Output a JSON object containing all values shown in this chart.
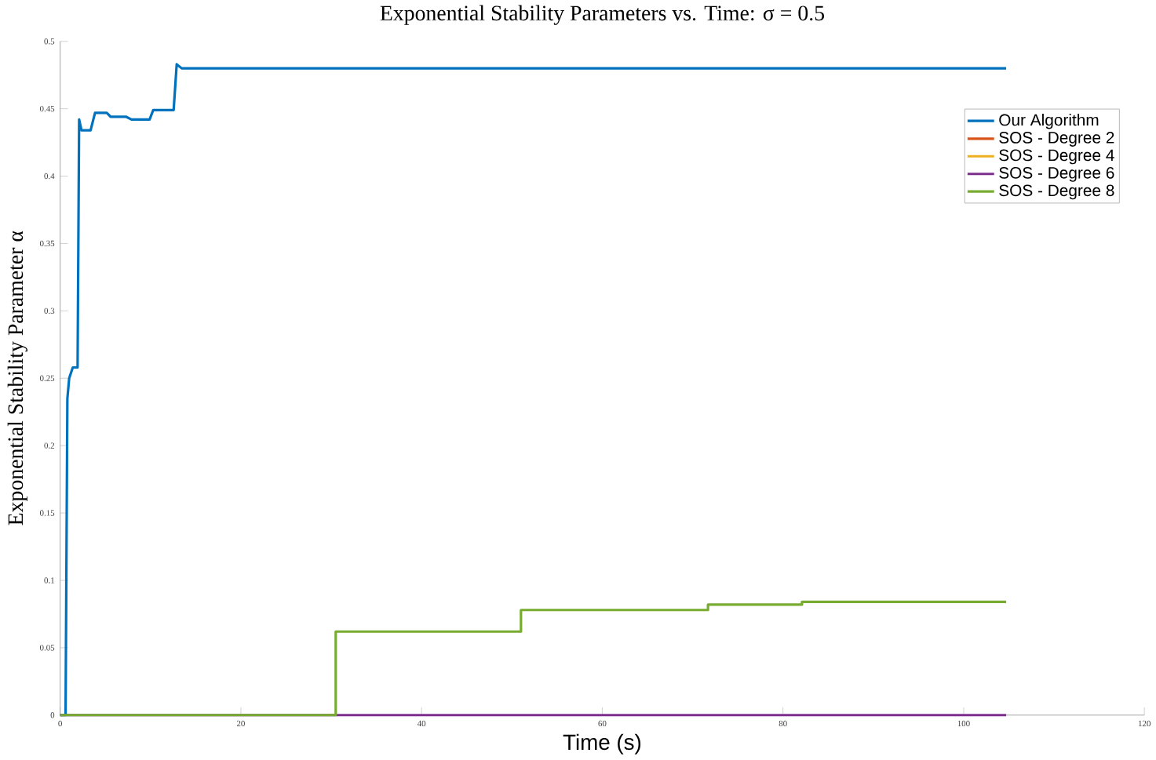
{
  "chart_data": {
    "type": "line",
    "title": "Exponential Stability Parameters vs. Time: σ = 0.5",
    "xlabel": "Time (s)",
    "ylabel": "Exponential Stability Parameter α",
    "xlim": [
      0,
      120
    ],
    "ylim": [
      0,
      0.5
    ],
    "xticks": [
      0,
      20,
      40,
      60,
      80,
      100,
      120
    ],
    "yticks": [
      0,
      0.05,
      0.1,
      0.15,
      0.2,
      0.25,
      0.3,
      0.35,
      0.4,
      0.45,
      0.5
    ],
    "grid": false,
    "legend": "top right",
    "series": [
      {
        "name": "Our Algorithm",
        "color": "#0072bd",
        "x": [
          0,
          0.6,
          0.8,
          1.0,
          1.4,
          1.93,
          2.1,
          2.36,
          3.37,
          3.86,
          5.16,
          5.59,
          7.32,
          7.9,
          9.9,
          10.3,
          12.56,
          12.9,
          13.45,
          20,
          104.7
        ],
        "values": [
          0,
          0,
          0.235,
          0.25,
          0.258,
          0.258,
          0.442,
          0.434,
          0.434,
          0.447,
          0.447,
          0.444,
          0.444,
          0.442,
          0.442,
          0.449,
          0.449,
          0.483,
          0.48,
          0.48,
          0.48
        ]
      },
      {
        "name": "SOS - Degree 2",
        "color": "#d95319"
      },
      {
        "name": "SOS - Degree 4",
        "color": "#edb120"
      },
      {
        "name": "SOS - Degree 6",
        "color": "#7e2f8e",
        "x": [
          0,
          104.7
        ],
        "values": [
          0,
          0
        ]
      },
      {
        "name": "SOS - Degree 8",
        "color": "#77ac30",
        "x": [
          0,
          30.5,
          30.5,
          51.0,
          51.0,
          71.7,
          71.7,
          82.1,
          82.1,
          104.7
        ],
        "values": [
          0,
          0,
          0.062,
          0.062,
          0.078,
          0.078,
          0.082,
          0.082,
          0.084,
          0.084
        ]
      }
    ]
  }
}
